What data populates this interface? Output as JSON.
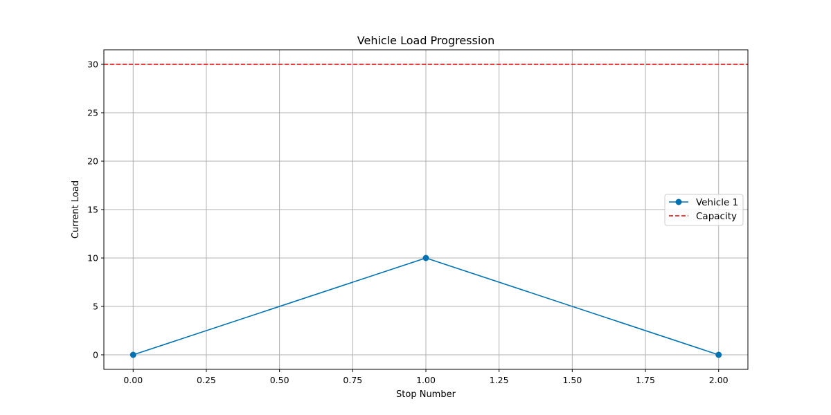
{
  "chart_data": {
    "type": "line",
    "title": "Vehicle Load Progression",
    "xlabel": "Stop Number",
    "ylabel": "Current Load",
    "xlim": [
      -0.1,
      2.1
    ],
    "ylim": [
      -1.5,
      31.5
    ],
    "xticks": [
      0.0,
      0.25,
      0.5,
      0.75,
      1.0,
      1.25,
      1.5,
      1.75,
      2.0
    ],
    "xtick_labels": [
      "0.00",
      "0.25",
      "0.50",
      "0.75",
      "1.00",
      "1.25",
      "1.50",
      "1.75",
      "2.00"
    ],
    "yticks": [
      0,
      5,
      10,
      15,
      20,
      25,
      30
    ],
    "ytick_labels": [
      "0",
      "5",
      "10",
      "15",
      "20",
      "25",
      "30"
    ],
    "grid": true,
    "legend_position": "center-right",
    "series": [
      {
        "name": "Vehicle 1",
        "x": [
          0,
          1,
          2
        ],
        "values": [
          0,
          10,
          0
        ],
        "color": "#0072b2",
        "style": "solid",
        "marker": "circle"
      }
    ],
    "reference_lines": [
      {
        "name": "Capacity",
        "orientation": "horizontal",
        "value": 30,
        "color": "#e00000",
        "style": "dashed"
      }
    ]
  }
}
